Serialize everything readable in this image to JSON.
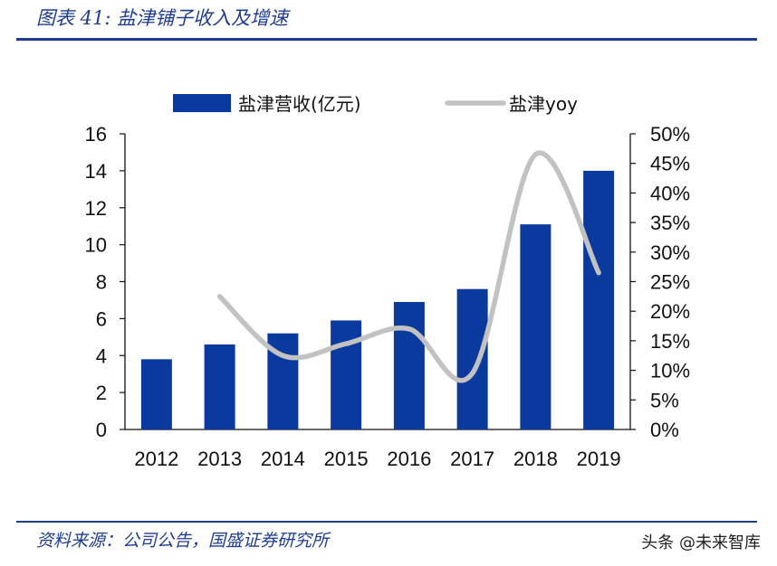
{
  "header": {
    "figure_title": "图表 41: 盐津铺子收入及增速"
  },
  "footer": {
    "source": "资料来源：公司公告，国盛证券研究所",
    "watermark": "头条 @未来智库"
  },
  "colors": {
    "bar": "#0b3a9e",
    "line": "#c2c2c2",
    "rule": "#1f3d8f"
  },
  "chart_data": {
    "type": "bar",
    "categories": [
      "2012",
      "2013",
      "2014",
      "2015",
      "2016",
      "2017",
      "2018",
      "2019"
    ],
    "series": [
      {
        "name": "盐津营收(亿元)",
        "type": "bar",
        "axis": "left",
        "values": [
          3.8,
          4.6,
          5.2,
          5.9,
          6.9,
          7.6,
          11.1,
          14.0
        ]
      },
      {
        "name": "盐津yoy",
        "type": "line",
        "axis": "right",
        "values": [
          null,
          22.5,
          12.5,
          14.5,
          17.0,
          9.5,
          46.5,
          26.5
        ]
      }
    ],
    "yleft": {
      "ylim": [
        0,
        16
      ],
      "ticks": [
        "0",
        "2",
        "4",
        "6",
        "8",
        "10",
        "12",
        "14",
        "16"
      ]
    },
    "yright": {
      "ylim": [
        0,
        50
      ],
      "ticks": [
        "0%",
        "5%",
        "10%",
        "15%",
        "20%",
        "25%",
        "30%",
        "35%",
        "40%",
        "45%",
        "50%"
      ]
    },
    "legend_position": "top",
    "grid": false
  }
}
